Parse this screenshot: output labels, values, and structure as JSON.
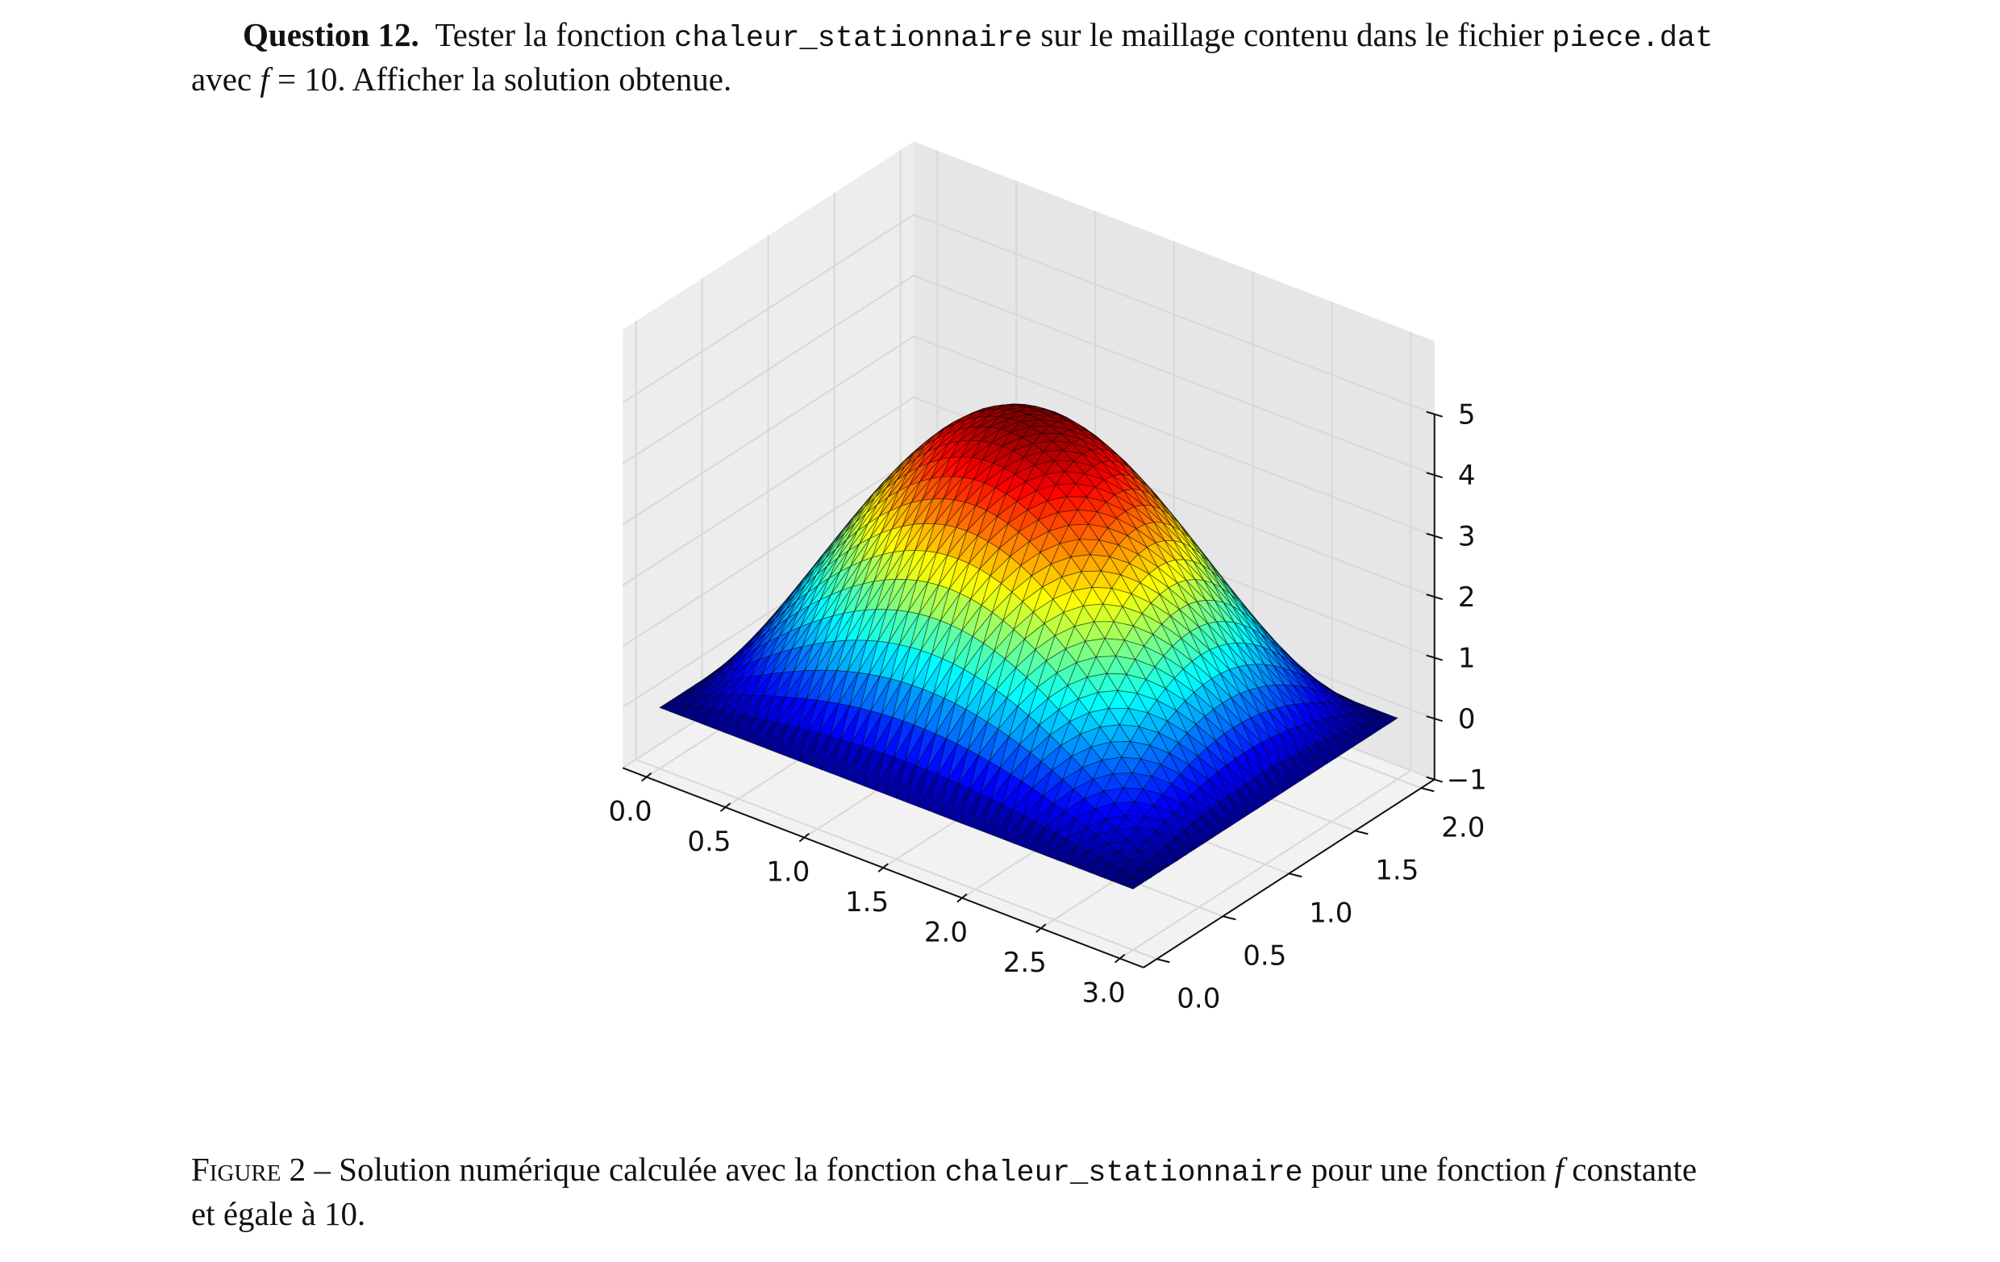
{
  "question": {
    "heading": "Question 12.",
    "t1": "Tester la fonction",
    "func": "chaleur_stationnaire",
    "t2": "sur le maillage contenu dans le fichier",
    "file": "piece.dat",
    "line2_avec": "avec",
    "var": "f",
    "eq": "= 10. Afficher la solution obtenue."
  },
  "caption": {
    "label": "Figure 2",
    "dash": "–",
    "t1": "Solution numérique calculée avec la fonction",
    "func": "chaleur_stationnaire",
    "t2": "pour une fonction",
    "var": "f",
    "t3": "constante",
    "t4": "et égale à 10."
  },
  "chart_data": {
    "type": "surface3d",
    "x_ticks": [
      "0.0",
      "0.5",
      "1.0",
      "1.5",
      "2.0",
      "2.5",
      "3.0"
    ],
    "y_ticks": [
      "0.0",
      "0.5",
      "1.0",
      "1.5",
      "2.0"
    ],
    "z_ticks": [
      "−1",
      "0",
      "1",
      "2",
      "3",
      "4",
      "5"
    ],
    "xlim": [
      0,
      3
    ],
    "ylim": [
      0,
      2
    ],
    "zlim": [
      -1,
      5
    ],
    "z_max": 4.9,
    "colormap": "jet",
    "grid": true
  }
}
